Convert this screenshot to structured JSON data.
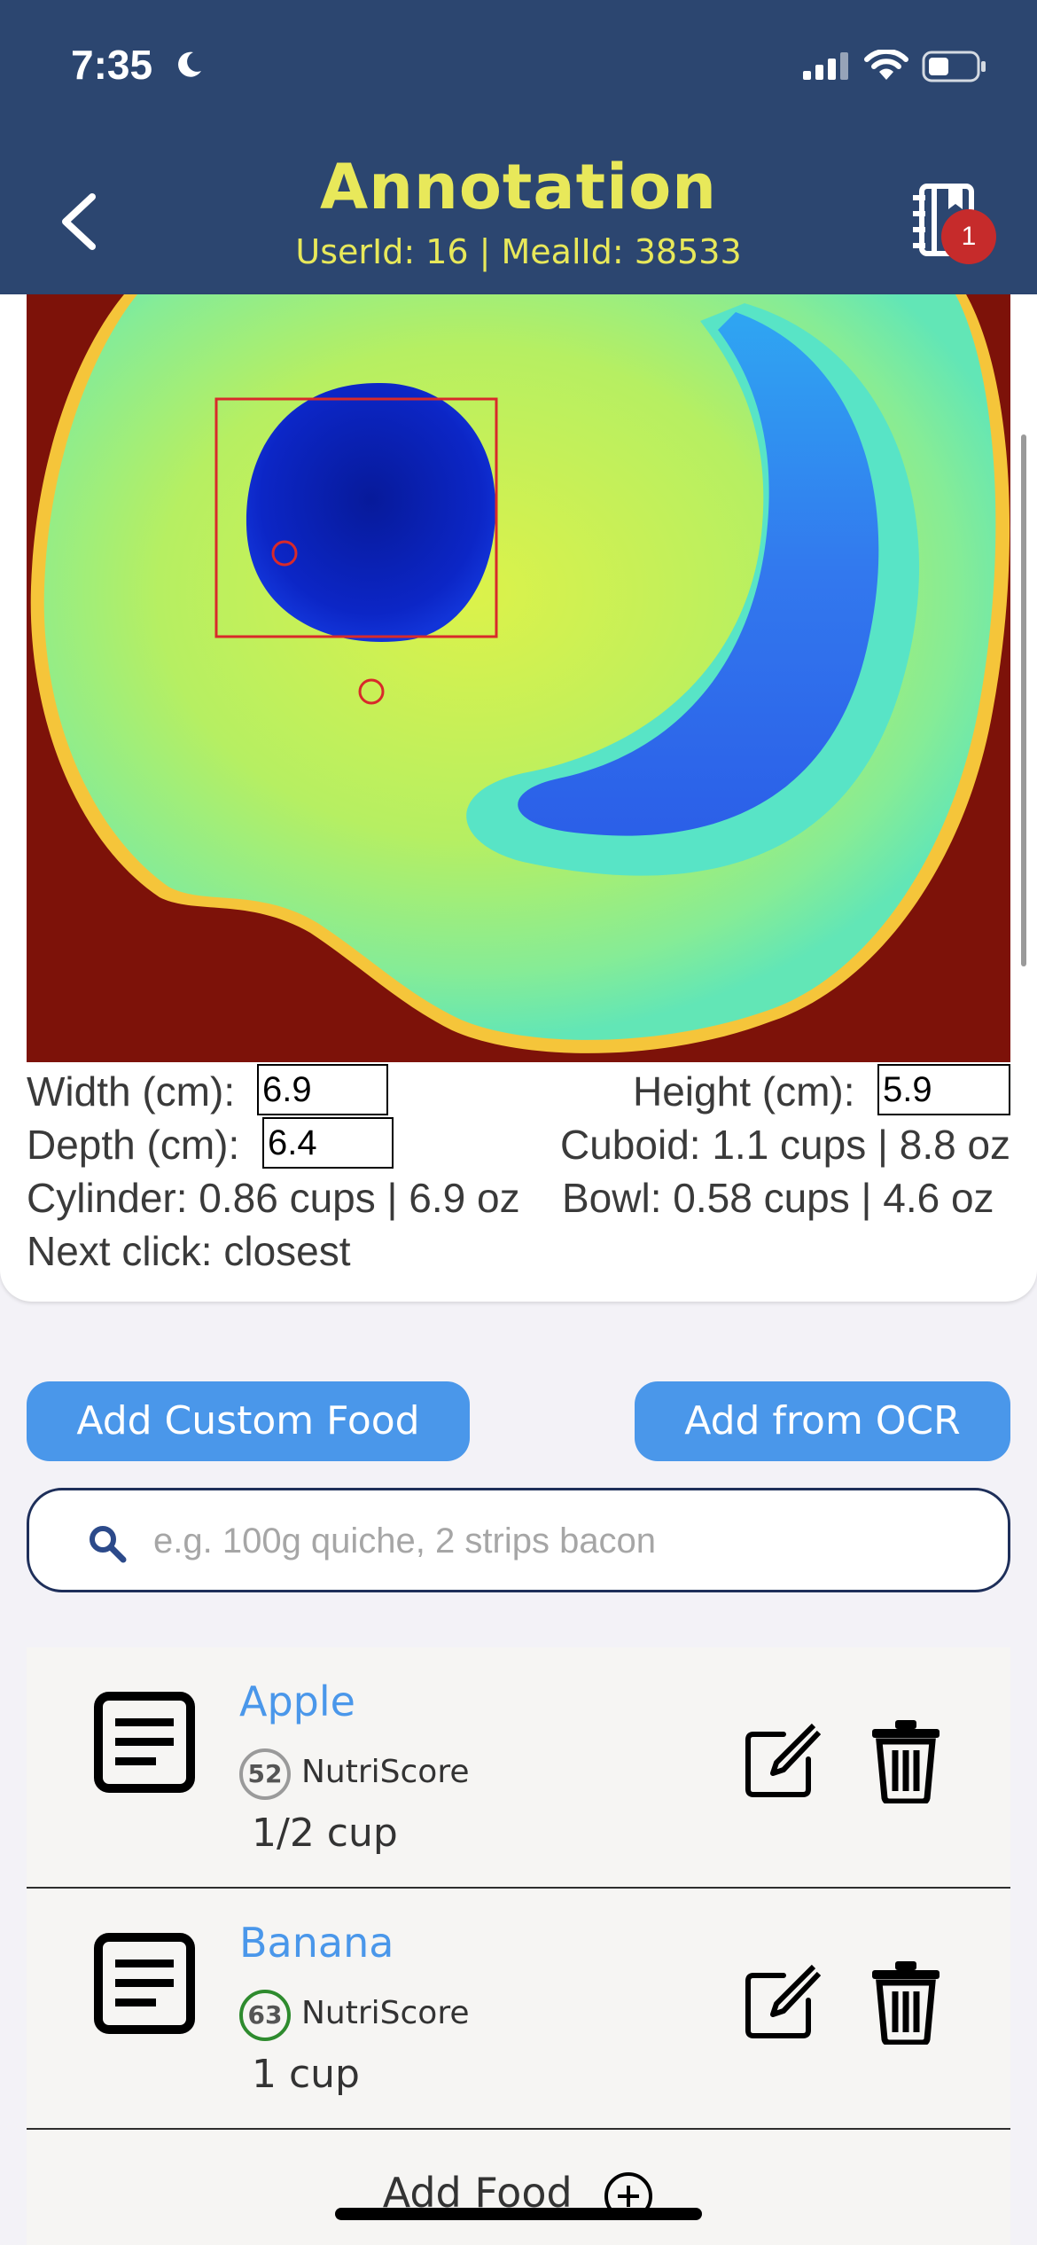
{
  "status": {
    "time": "7:35"
  },
  "header": {
    "title": "Annotation",
    "subtitle": "UserId: 16 | MealId: 38533",
    "badge_count": "1"
  },
  "measurement": {
    "width_label": "Width (cm):",
    "width_value": "6.9",
    "height_label": "Height (cm):",
    "height_value": "5.9",
    "depth_label": "Depth (cm):",
    "depth_value": "6.4",
    "cuboid": "Cuboid: 1.1 cups | 8.8 oz",
    "cylinder": "Cylinder: 0.86 cups | 6.9 oz",
    "bowl": "Bowl: 0.58 cups | 4.6 oz",
    "next_click": "Next click: closest"
  },
  "actions": {
    "add_custom": "Add Custom Food",
    "add_ocr": "Add from OCR"
  },
  "search": {
    "placeholder": "e.g. 100g quiche, 2 strips bacon"
  },
  "foods": [
    {
      "name": "Apple",
      "score": "52",
      "score_label": "NutriScore",
      "quantity": "1/2 cup",
      "score_color": "#9a9a9a"
    },
    {
      "name": "Banana",
      "score": "63",
      "score_label": "NutriScore",
      "quantity": "1 cup",
      "score_color": "#2e8b2e"
    }
  ],
  "add_food": "Add Food",
  "colors": {
    "nav": "#2c4670",
    "title": "#e8e85a",
    "accent": "#4a97ea",
    "badge": "#c62b2b"
  },
  "icons": [
    "moon-icon",
    "signal-icon",
    "wifi-icon",
    "battery-icon",
    "back-chevron-icon",
    "diary-icon",
    "search-icon",
    "document-icon",
    "edit-icon",
    "trash-icon",
    "plus-circle-icon"
  ]
}
